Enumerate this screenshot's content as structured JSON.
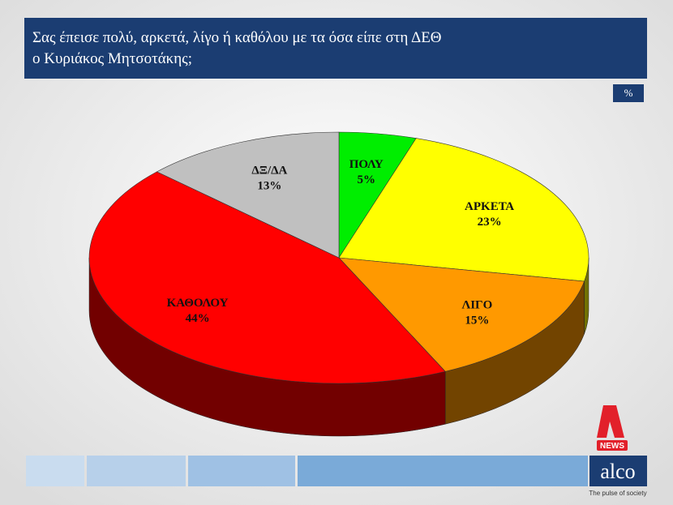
{
  "chart_data": {
    "type": "pie",
    "title": [
      "Σας έπεισε πολύ, αρκετά, λίγο ή καθόλου με τα όσα είπε στη ΔΕΘ",
      "ο Κυριάκος Μητσοτάκης;"
    ],
    "unit": "%",
    "categories": [
      "ΠΟΛΥ",
      "ΑΡΚΕΤΑ",
      "ΛΙΓΟ",
      "ΚΑΘΟΛΟΥ",
      "ΔΞ/ΔΑ"
    ],
    "values": [
      5,
      23,
      15,
      44,
      13
    ],
    "value_labels": [
      "5%",
      "23%",
      "15%",
      "44%",
      "13%"
    ],
    "colors": [
      "#00ee00",
      "#ffff00",
      "#ff9900",
      "#ff0000",
      "#c0c0c0"
    ]
  },
  "branding": {
    "news": "NEWS",
    "logo": "alco",
    "tagline": "The pulse of society"
  }
}
